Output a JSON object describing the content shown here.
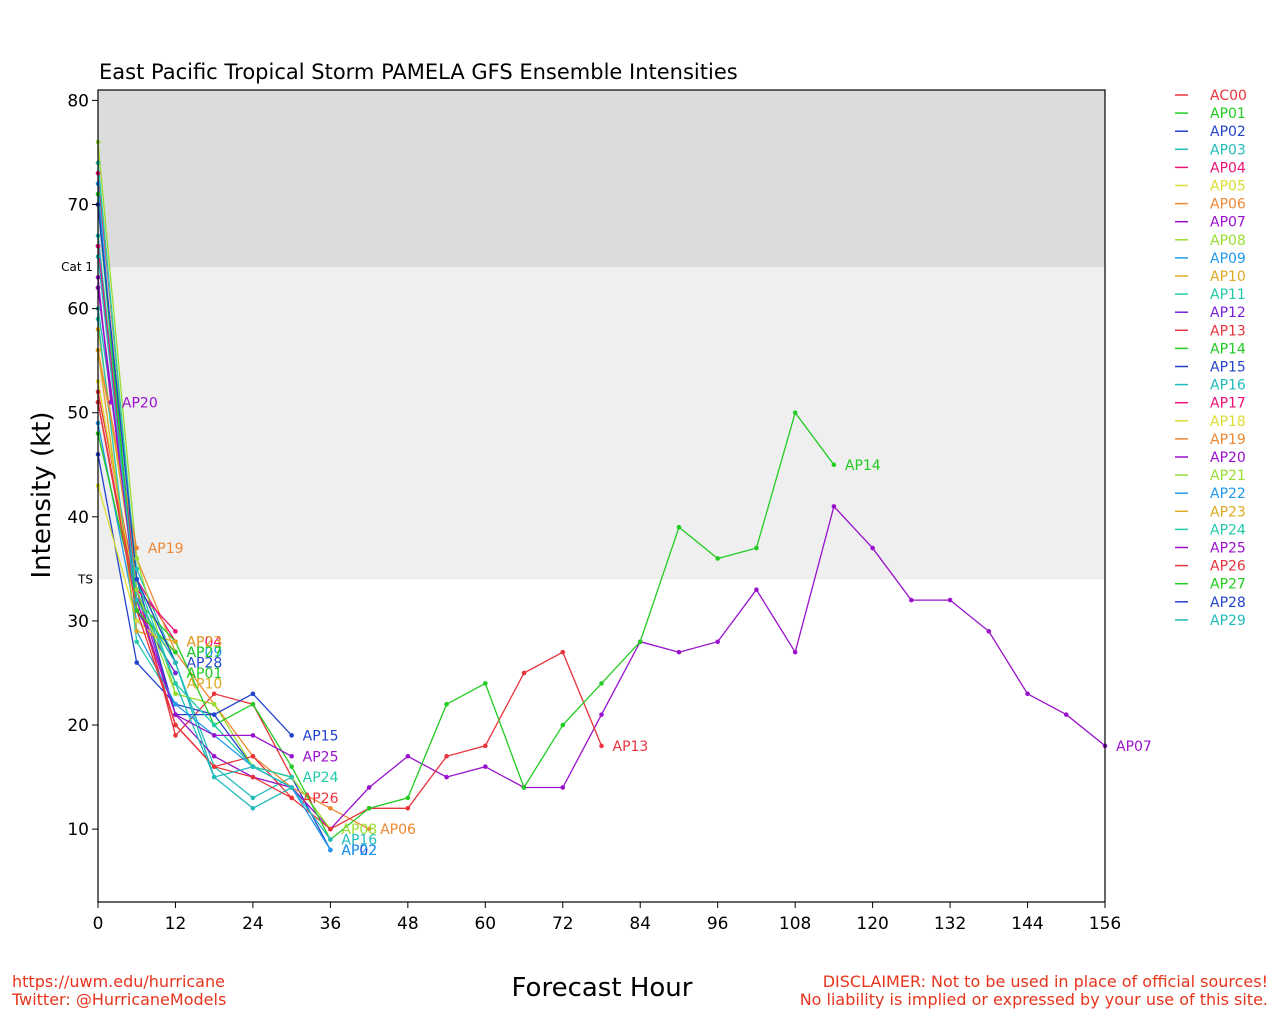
{
  "footer": {
    "left_line1": "https://uwm.edu/hurricane",
    "left_line2": "Twitter: @HurricaneModels",
    "right_line1": "DISCLAIMER: Not to be used in place of official sources!",
    "right_line2": "No liability is implied or expressed by your use of this site."
  },
  "chart_data": {
    "type": "line",
    "title": "East Pacific Tropical Storm PAMELA GFS Ensemble Intensities",
    "xlabel": "Forecast Hour",
    "ylabel": "Intensity (kt)",
    "xlim": [
      0,
      156
    ],
    "ylim": [
      3,
      81
    ],
    "xticks": [
      0,
      12,
      24,
      36,
      48,
      60,
      72,
      84,
      96,
      108,
      120,
      132,
      144,
      156
    ],
    "yticks": [
      10,
      20,
      30,
      40,
      50,
      60,
      70,
      80
    ],
    "bands": [
      {
        "label": "TS",
        "from": 34,
        "to": 64,
        "color": "#efefef"
      },
      {
        "label": "Cat 1",
        "from": 64,
        "to": 81,
        "color": "#dcdcdc"
      }
    ],
    "legend_position": "right, outside plot",
    "series": [
      {
        "name": "AC00",
        "color": "#e8343c",
        "x": [
          0,
          6,
          12,
          18,
          24,
          30
        ],
        "y": [
          52,
          33,
          19,
          23,
          22,
          15
        ],
        "end_label": false
      },
      {
        "name": "AP01",
        "color": "#22cc22",
        "x": [
          0,
          6,
          12
        ],
        "y": [
          71,
          31,
          25
        ],
        "end_label": true
      },
      {
        "name": "AP02",
        "color": "#2244cc",
        "x": [
          0,
          6,
          12,
          18,
          24,
          30,
          36
        ],
        "y": [
          46,
          26,
          22,
          21,
          16,
          15,
          8
        ],
        "end_label": true
      },
      {
        "name": "AP03",
        "color": "#22bbbb",
        "x": [
          0,
          6,
          12,
          18,
          24,
          30
        ],
        "y": [
          60,
          35,
          26,
          16,
          13,
          15
        ],
        "end_label": false
      },
      {
        "name": "AP04",
        "color": "#ee1177",
        "x": [
          0,
          6,
          12
        ],
        "y": [
          73,
          34,
          28
        ],
        "end_label": true
      },
      {
        "name": "AP05",
        "color": "#dddd33",
        "x": [
          0,
          6,
          12
        ],
        "y": [
          53,
          32,
          26
        ],
        "end_label": false
      },
      {
        "name": "AP06",
        "color": "#ee8833",
        "x": [
          0,
          6,
          12,
          18,
          24,
          30,
          36,
          42
        ],
        "y": [
          56,
          36,
          27,
          22,
          17,
          14,
          12,
          10
        ],
        "end_label": true
      },
      {
        "name": "AP07",
        "color": "#9911cc",
        "x": [
          0,
          6,
          12,
          18,
          24,
          30,
          36,
          42,
          48,
          54,
          60,
          66,
          72,
          78,
          84,
          90,
          96,
          102,
          108,
          114,
          120,
          126,
          132,
          138,
          144,
          150,
          156
        ],
        "y": [
          62,
          33,
          21,
          17,
          15,
          14,
          10,
          14,
          17,
          15,
          16,
          14,
          14,
          21,
          28,
          27,
          28,
          33,
          27,
          41,
          37,
          32,
          32,
          29,
          23,
          21,
          18
        ],
        "end_label": true
      },
      {
        "name": "AP08",
        "color": "#99dd33",
        "x": [
          0,
          6,
          12,
          18,
          24,
          30,
          36
        ],
        "y": [
          76,
          36,
          23,
          22,
          16,
          15,
          10
        ],
        "end_label": true
      },
      {
        "name": "AP09",
        "color": "#2299ee",
        "x": [
          0,
          6,
          12
        ],
        "y": [
          49,
          30,
          27
        ],
        "end_label": true
      },
      {
        "name": "AP10",
        "color": "#ddaa22",
        "x": [
          0,
          6,
          12
        ],
        "y": [
          58,
          33,
          24
        ],
        "end_label": true
      },
      {
        "name": "AP11",
        "color": "#22ccaa",
        "x": [
          0,
          6,
          12
        ],
        "y": [
          59,
          28,
          22
        ],
        "end_label": false
      },
      {
        "name": "AP12",
        "color": "#7722dd",
        "x": [
          0,
          6,
          12
        ],
        "y": [
          66,
          31,
          25
        ],
        "end_label": false
      },
      {
        "name": "AP13",
        "color": "#e8343c",
        "x": [
          0,
          6,
          12,
          18,
          24,
          30,
          36,
          42,
          48,
          54,
          60,
          66,
          72,
          78
        ],
        "y": [
          51,
          32,
          20,
          16,
          17,
          13,
          10,
          12,
          12,
          17,
          18,
          25,
          27,
          18
        ],
        "end_label": true
      },
      {
        "name": "AP14",
        "color": "#22cc22",
        "x": [
          0,
          6,
          12,
          18,
          24,
          30,
          36,
          42,
          48,
          54,
          60,
          66,
          72,
          78,
          84,
          90,
          96,
          102,
          108,
          114
        ],
        "y": [
          48,
          32,
          28,
          20,
          22,
          16,
          9,
          12,
          13,
          22,
          24,
          14,
          20,
          24,
          28,
          39,
          36,
          37,
          50,
          45
        ],
        "end_label": true
      },
      {
        "name": "AP15",
        "color": "#2244cc",
        "x": [
          0,
          6,
          12,
          18,
          24,
          30
        ],
        "y": [
          70,
          34,
          21,
          21,
          23,
          19
        ],
        "end_label": true
      },
      {
        "name": "AP16",
        "color": "#22bbbb",
        "x": [
          0,
          6,
          12,
          18,
          24,
          30,
          36
        ],
        "y": [
          67,
          33,
          24,
          15,
          12,
          14,
          9
        ],
        "end_label": true
      },
      {
        "name": "AP17",
        "color": "#ee1177",
        "x": [
          0,
          6,
          12
        ],
        "y": [
          66,
          33,
          29
        ],
        "end_label": false
      },
      {
        "name": "AP18",
        "color": "#dddd33",
        "x": [
          0,
          6,
          12
        ],
        "y": [
          43,
          30,
          27
        ],
        "end_label": false
      },
      {
        "name": "AP19",
        "color": "#ee8833",
        "x": [
          0,
          6
        ],
        "y": [
          56,
          37
        ],
        "end_label": true
      },
      {
        "name": "AP20",
        "color": "#9911cc",
        "x": [
          0,
          2
        ],
        "y": [
          63,
          51
        ],
        "end_label": true
      },
      {
        "name": "AP21",
        "color": "#99dd33",
        "x": [
          0,
          6,
          12
        ],
        "y": [
          74,
          33,
          23
        ],
        "end_label": false
      },
      {
        "name": "AP22",
        "color": "#2299ee",
        "x": [
          0,
          6,
          12,
          18,
          24,
          30,
          36
        ],
        "y": [
          72,
          29,
          22,
          19,
          16,
          14,
          8
        ],
        "end_label": true
      },
      {
        "name": "AP23",
        "color": "#ddaa22",
        "x": [
          0,
          6,
          12
        ],
        "y": [
          56,
          29,
          28
        ],
        "end_label": true
      },
      {
        "name": "AP24",
        "color": "#22ccaa",
        "x": [
          0,
          6,
          12,
          18,
          24,
          30
        ],
        "y": [
          74,
          34,
          24,
          20,
          16,
          15
        ],
        "end_label": true
      },
      {
        "name": "AP25",
        "color": "#9911cc",
        "x": [
          0,
          6,
          12,
          18,
          24,
          30
        ],
        "y": [
          62,
          32,
          21,
          19,
          19,
          17
        ],
        "end_label": true
      },
      {
        "name": "AP26",
        "color": "#e8343c",
        "x": [
          0,
          6,
          12,
          18,
          24,
          30
        ],
        "y": [
          51,
          31,
          20,
          16,
          15,
          13
        ],
        "end_label": true
      },
      {
        "name": "AP27",
        "color": "#22cc22",
        "x": [
          0,
          6,
          12
        ],
        "y": [
          70,
          31,
          27
        ],
        "end_label": true
      },
      {
        "name": "AP28",
        "color": "#2244cc",
        "x": [
          0,
          6,
          12
        ],
        "y": [
          70,
          34,
          26
        ],
        "end_label": true
      },
      {
        "name": "AP29",
        "color": "#22bbbb",
        "x": [
          0,
          6,
          12,
          18,
          24,
          30
        ],
        "y": [
          65,
          32,
          26,
          15,
          16,
          14
        ],
        "end_label": false
      }
    ]
  }
}
